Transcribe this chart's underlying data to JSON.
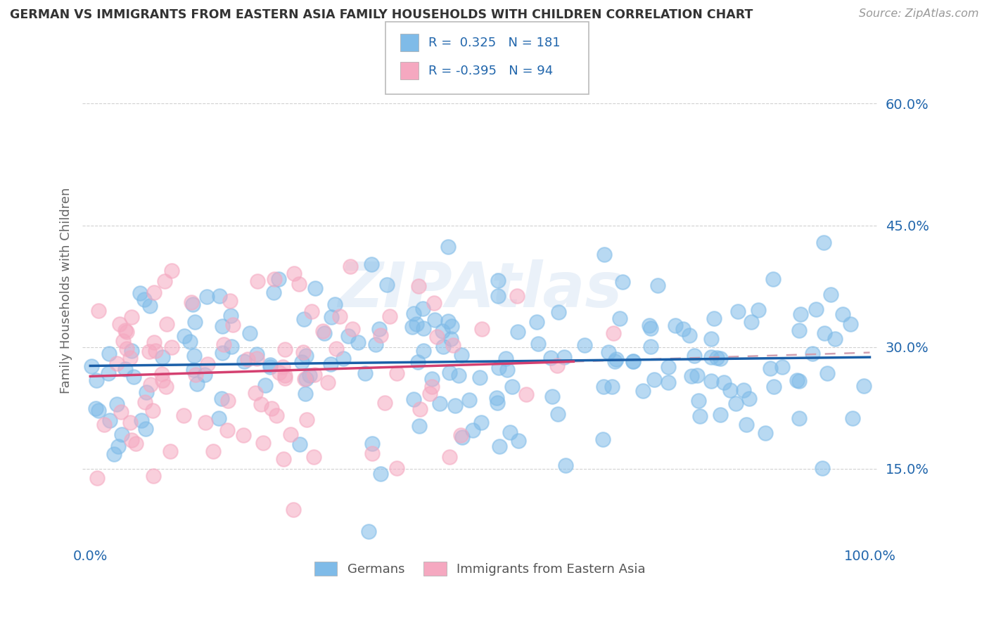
{
  "title": "GERMAN VS IMMIGRANTS FROM EASTERN ASIA FAMILY HOUSEHOLDS WITH CHILDREN CORRELATION CHART",
  "source": "Source: ZipAtlas.com",
  "ylabel": "Family Households with Children",
  "yticks_labels": [
    "15.0%",
    "30.0%",
    "45.0%",
    "60.0%"
  ],
  "ytick_vals": [
    0.15,
    0.3,
    0.45,
    0.6
  ],
  "legend_label1": "Germans",
  "legend_label2": "Immigrants from Eastern Asia",
  "R1": 0.325,
  "N1": 181,
  "R2": -0.395,
  "N2": 94,
  "blue_scatter_color": "#7fbbe8",
  "pink_scatter_color": "#f5a8c0",
  "blue_line_color": "#1a5fa8",
  "pink_line_color": "#d44070",
  "pink_dashed_color": "#d0a0b0",
  "background_color": "#ffffff",
  "grid_color": "#cccccc",
  "title_color": "#333333",
  "source_color": "#999999",
  "stat_color": "#2166ac",
  "tick_color": "#2166ac",
  "ylabel_color": "#666666"
}
